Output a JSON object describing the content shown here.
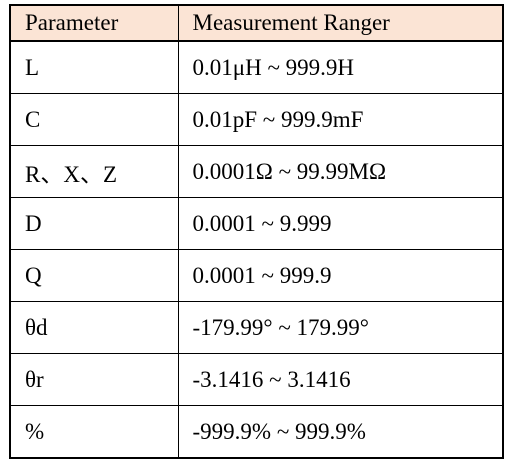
{
  "table": {
    "headers": [
      "Parameter",
      "Measurement Ranger"
    ],
    "header_background": "#fbe4d5",
    "rows": [
      {
        "parameter": "L",
        "range": "0.01μH  ~  999.9H"
      },
      {
        "parameter": "C",
        "range": "0.01pF  ~  999.9mF"
      },
      {
        "parameter": "R、X、Z",
        "range": "0.0001Ω  ~  99.99MΩ"
      },
      {
        "parameter": "D",
        "range": "0.0001  ~  9.999"
      },
      {
        "parameter": "Q",
        "range": "0.0001  ~  999.9"
      },
      {
        "parameter": "θd",
        "range": "-179.99° ~ 179.99°"
      },
      {
        "parameter": "θr",
        "range": "-3.1416  ~  3.1416"
      },
      {
        "parameter": "%",
        "range": "-999.9%  ~  999.9%"
      }
    ]
  }
}
